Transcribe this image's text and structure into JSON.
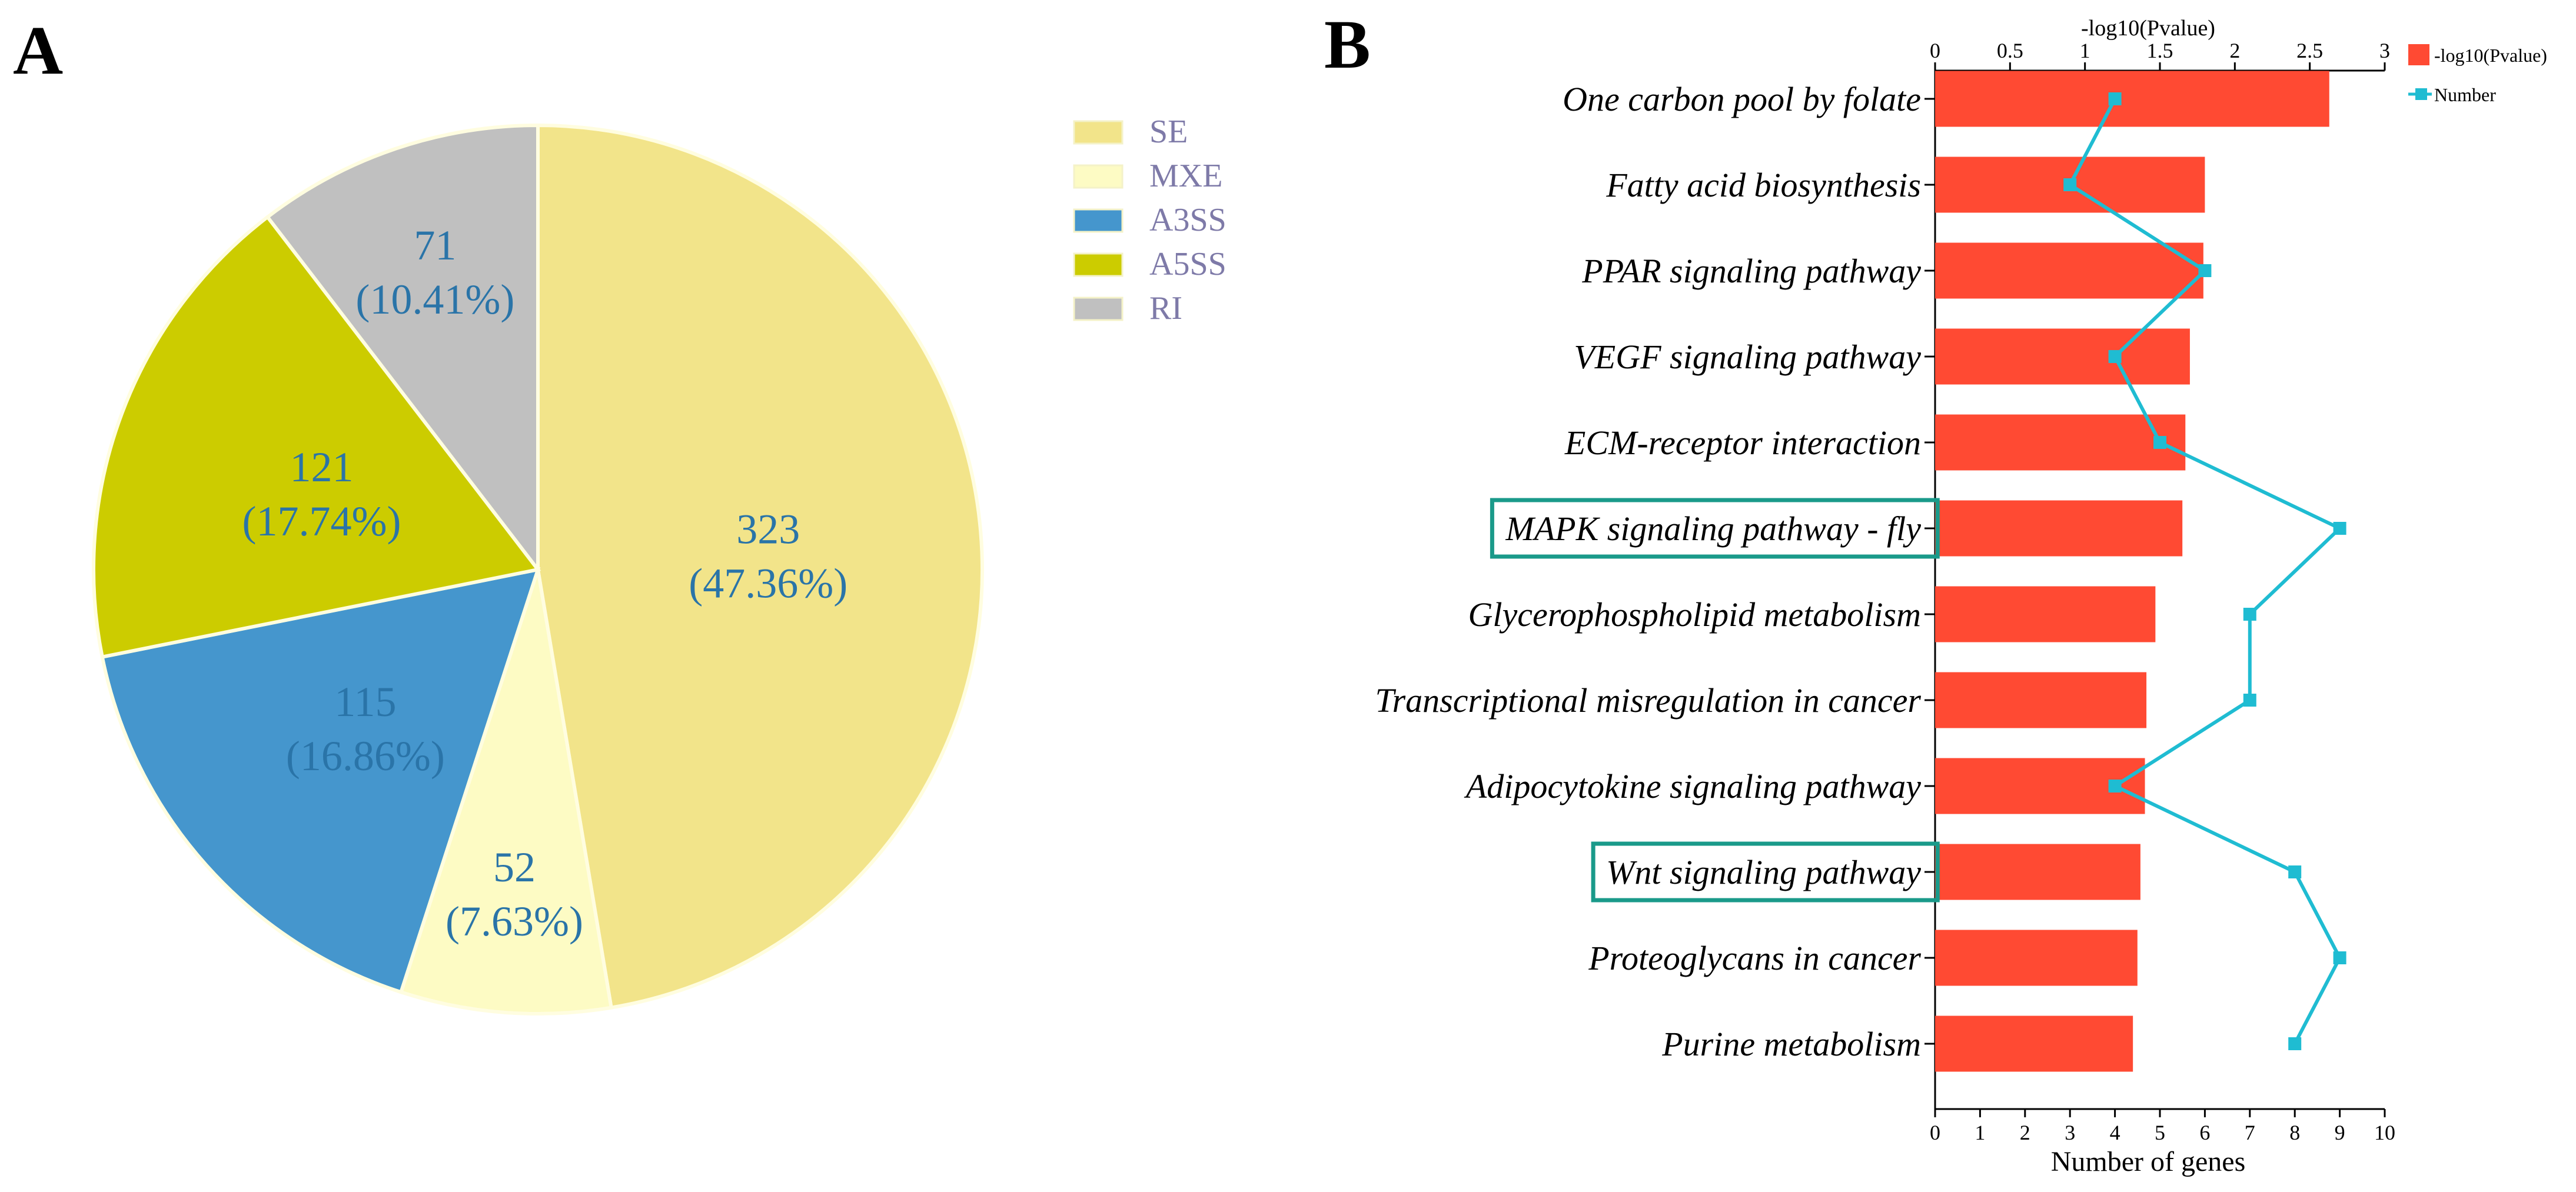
{
  "panels": {
    "a_label": "A",
    "b_label": "B"
  },
  "chart_data": [
    {
      "type": "pie",
      "labels": [
        "SE",
        "MXE",
        "A3SS",
        "A5SS",
        "RI"
      ],
      "values": [
        323,
        52,
        115,
        121,
        71
      ],
      "percent_labels": [
        "(47.36%)",
        "(7.63%)",
        "(16.86%)",
        "(17.74%)",
        "(10.41%)"
      ],
      "colors": [
        "#f2e48a",
        "#fdfbc4",
        "#4596cd",
        "#cccc00",
        "#c0c0c0"
      ],
      "legend": {
        "entries": [
          "SE",
          "MXE",
          "A3SS",
          "A5SS",
          "RI"
        ],
        "position": "right"
      }
    },
    {
      "type": "bar",
      "orientation": "horizontal",
      "categories": [
        "One carbon pool by folate",
        "Fatty acid biosynthesis",
        "PPAR signaling pathway",
        "VEGF signaling pathway",
        "ECM-receptor interaction",
        "MAPK signaling pathway - fly",
        "Glycerophospholipid metabolism",
        "Transcriptional misregulation in cancer",
        "Adipocytokine signaling pathway",
        "Wnt signaling pathway",
        "Proteoglycans in cancer",
        "Purine metabolism"
      ],
      "highlighted": [
        "MAPK signaling pathway - fly",
        "Wnt signaling pathway"
      ],
      "highlight_color": "#1a9a8a",
      "series": [
        {
          "name": "-log10(Pvalue)",
          "type": "bar",
          "axis": "top",
          "color": "#ff4a33",
          "values": [
            2.63,
            1.8,
            1.79,
            1.7,
            1.67,
            1.65,
            1.47,
            1.41,
            1.4,
            1.37,
            1.35,
            1.32
          ]
        },
        {
          "name": "Number",
          "type": "line",
          "axis": "bottom",
          "color": "#1fbcd2",
          "values": [
            4,
            3,
            6,
            4,
            5,
            9,
            7,
            7,
            4,
            8,
            9,
            8
          ]
        }
      ],
      "top_axis": {
        "title": "-log10(Pvalue)",
        "range": [
          0,
          3
        ],
        "ticks": [
          "0",
          "0.5",
          "1",
          "1.5",
          "2",
          "2.5",
          "3"
        ]
      },
      "bottom_axis": {
        "title": "Number of genes",
        "range": [
          0,
          10
        ],
        "ticks": [
          "0",
          "1",
          "2",
          "3",
          "4",
          "5",
          "6",
          "7",
          "8",
          "9",
          "10"
        ]
      },
      "legend": {
        "entries": [
          "-log10(Pvalue)",
          "Number"
        ],
        "position": "top-right"
      }
    }
  ]
}
